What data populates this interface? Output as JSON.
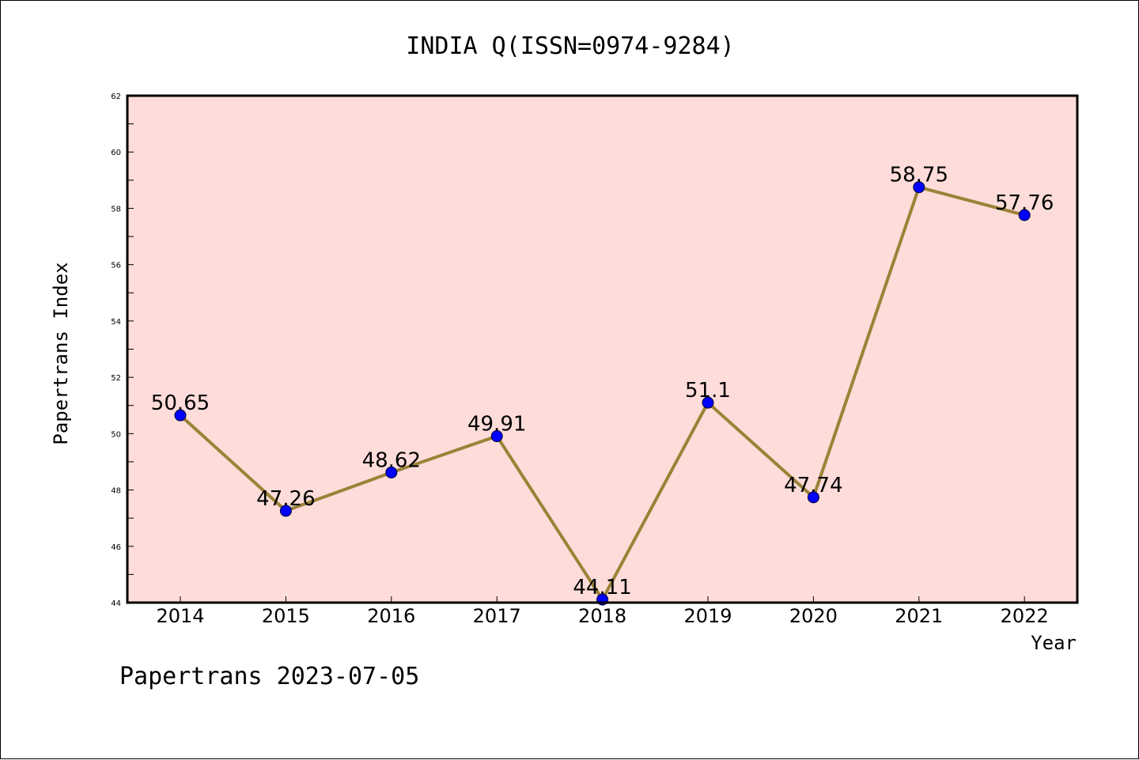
{
  "footer": {
    "credit": "Papertrans 2023-07-05"
  },
  "colors": {
    "plot_background": "#fddcd9",
    "line": "#9b8237",
    "marker": "#0000ff"
  },
  "chart_data": {
    "type": "line",
    "title": "INDIA Q(ISSN=0974-9284)",
    "xlabel": "Year",
    "ylabel": "Papertrans Index",
    "categories": [
      "2014",
      "2015",
      "2016",
      "2017",
      "2018",
      "2019",
      "2020",
      "2021",
      "2022"
    ],
    "values": [
      50.65,
      47.26,
      48.62,
      49.91,
      44.11,
      51.1,
      47.74,
      58.75,
      57.76
    ],
    "data_labels": [
      "50.65",
      "47.26",
      "48.62",
      "49.91",
      "44.11",
      "51.1",
      "47.74",
      "58.75",
      "57.76"
    ],
    "yticks": [
      "44",
      "46",
      "48",
      "50",
      "52",
      "54",
      "56",
      "58",
      "60",
      "62"
    ],
    "ylim": [
      44,
      62
    ],
    "grid": false,
    "legend": "none"
  }
}
